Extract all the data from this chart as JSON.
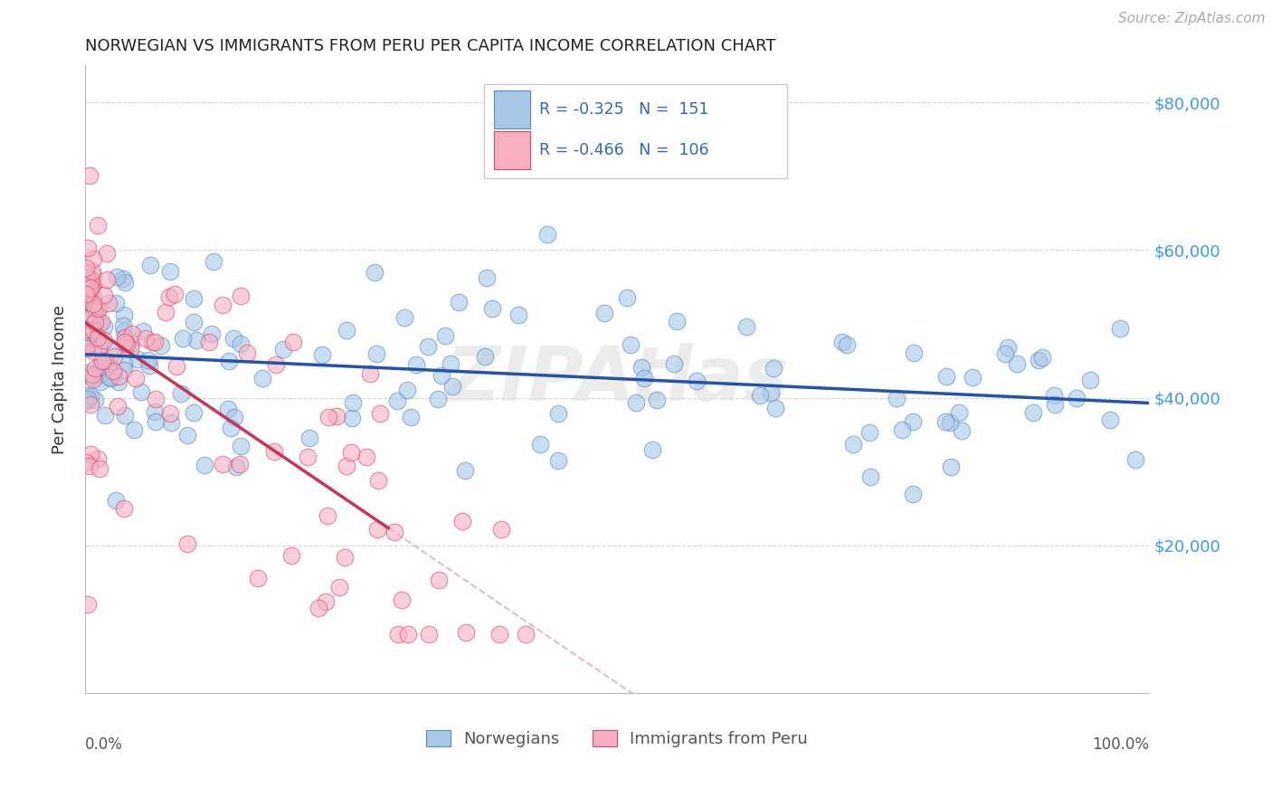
{
  "title": "NORWEGIAN VS IMMIGRANTS FROM PERU PER CAPITA INCOME CORRELATION CHART",
  "source": "Source: ZipAtlas.com",
  "ylabel": "Per Capita Income",
  "xlim": [
    0.0,
    1.0
  ],
  "ylim": [
    0,
    85000
  ],
  "blue_color": "#A8C8E8",
  "blue_edge_color": "#5588CC",
  "pink_color": "#F8B0C0",
  "pink_edge_color": "#DD4466",
  "line_blue_color": "#2255AA",
  "line_pink_color": "#CC3355",
  "line_dashed_color": "#DDBBCC",
  "watermark": "ZIPAtlas",
  "title_color": "#222222",
  "tick_color_right": "#3399FF",
  "background_color": "#FFFFFF",
  "grid_color": "#CCCCCC",
  "legend_text_color": "#3366BB",
  "legend_label_blue": "Norwegians",
  "legend_label_pink": "Immigrants from Peru"
}
